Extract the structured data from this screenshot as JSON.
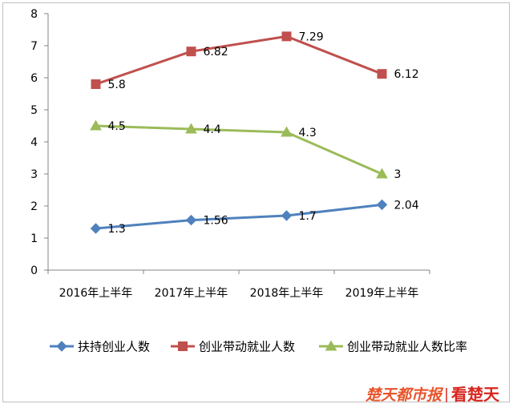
{
  "chart_data": {
    "type": "line",
    "categories": [
      "2016年上半年",
      "2017年上半年",
      "2018年上半年",
      "2019年上半年"
    ],
    "ylim": [
      0,
      8
    ],
    "yticks": [
      0,
      1,
      2,
      3,
      4,
      5,
      6,
      7,
      8
    ],
    "grid": false,
    "legend": "bottom",
    "data_labels": "right",
    "series": [
      {
        "name": "扶持创业人数",
        "values": [
          1.3,
          1.56,
          1.7,
          2.04
        ],
        "color": "#4F81BD",
        "marker": "diamond"
      },
      {
        "name": "创业带动就业人数",
        "values": [
          5.8,
          6.82,
          7.29,
          6.12
        ],
        "color": "#C0504D",
        "marker": "square"
      },
      {
        "name": "创业带动就业人数比率",
        "values": [
          4.5,
          4.4,
          4.3,
          3
        ],
        "color": "#9BBB59",
        "marker": "triangle"
      }
    ]
  },
  "watermark": {
    "brand": "楚天都市报",
    "app": "看楚天",
    "brand_color": "#E8542B",
    "app_color": "#D7261E"
  }
}
